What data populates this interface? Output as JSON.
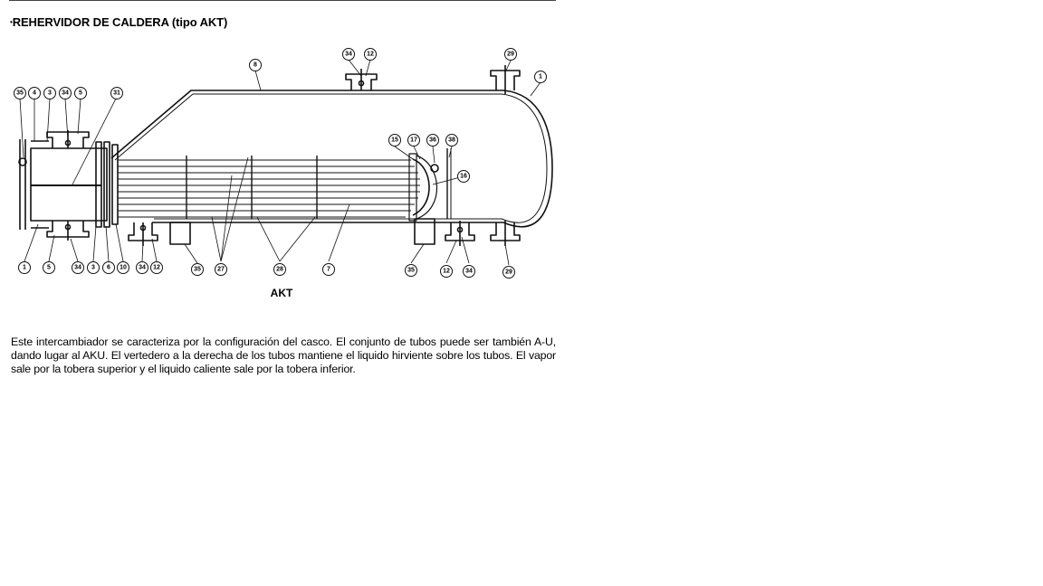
{
  "document": {
    "heading": {
      "bullet": "•",
      "text": "REHERVIDOR DE CALDERA (tipo AKT)"
    },
    "figure": {
      "caption": "AKT",
      "part_labels": {
        "top_left": [
          "35",
          "4",
          "3",
          "34",
          "5"
        ],
        "p31": "31",
        "p8": "8",
        "top_nozzle": [
          "34",
          "12"
        ],
        "top_right_nozzle": "29",
        "p1_shell": "1",
        "bundle_end": [
          "15",
          "17",
          "36",
          "38"
        ],
        "p16": "16",
        "bottom_left": [
          "1",
          "5",
          "34",
          "3",
          "6",
          "10",
          "34",
          "12"
        ],
        "bottom_middle": [
          "35",
          "27",
          "28",
          "7"
        ],
        "bottom_right": [
          "35",
          "12",
          "34",
          "29"
        ]
      }
    },
    "paragraph": "Este intercambiador se caracteriza por la configuración del casco. El conjunto de tubos puede ser también A-U, dando lugar al AKU. El vertedero a la derecha de los tubos mantiene el liquido hirviente sobre los tubos. El vapor sale por la tobera superior y el liquido caliente sale por la tobera inferior."
  }
}
